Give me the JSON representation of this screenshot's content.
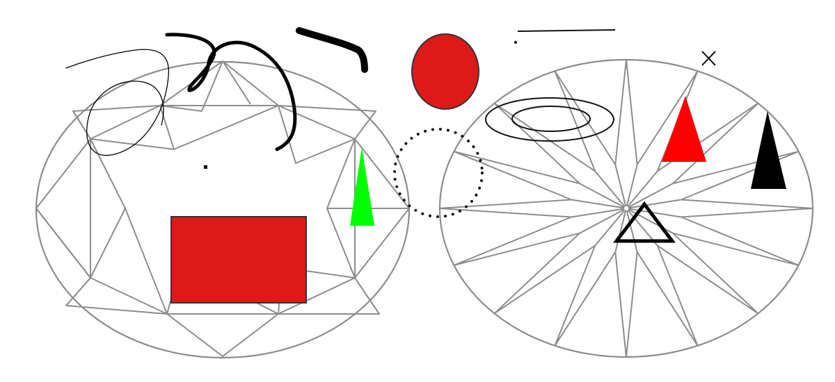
{
  "colors": {
    "facet_stroke": "#8c8c8c",
    "shape_red": "#dc1a1a",
    "bright_red": "#ff0000",
    "green": "#00ff00",
    "black": "#000000",
    "background": "#ffffff"
  },
  "objects": [
    "diamond-crown-view-left",
    "diamond-pavilion-view-right",
    "red-rectangle",
    "green-triangle",
    "red-oval",
    "dotted-circle",
    "concentric-ovals",
    "red-triangle",
    "black-triangle",
    "outlined-triangle",
    "x-mark",
    "thin-line",
    "scribble-strokes"
  ]
}
